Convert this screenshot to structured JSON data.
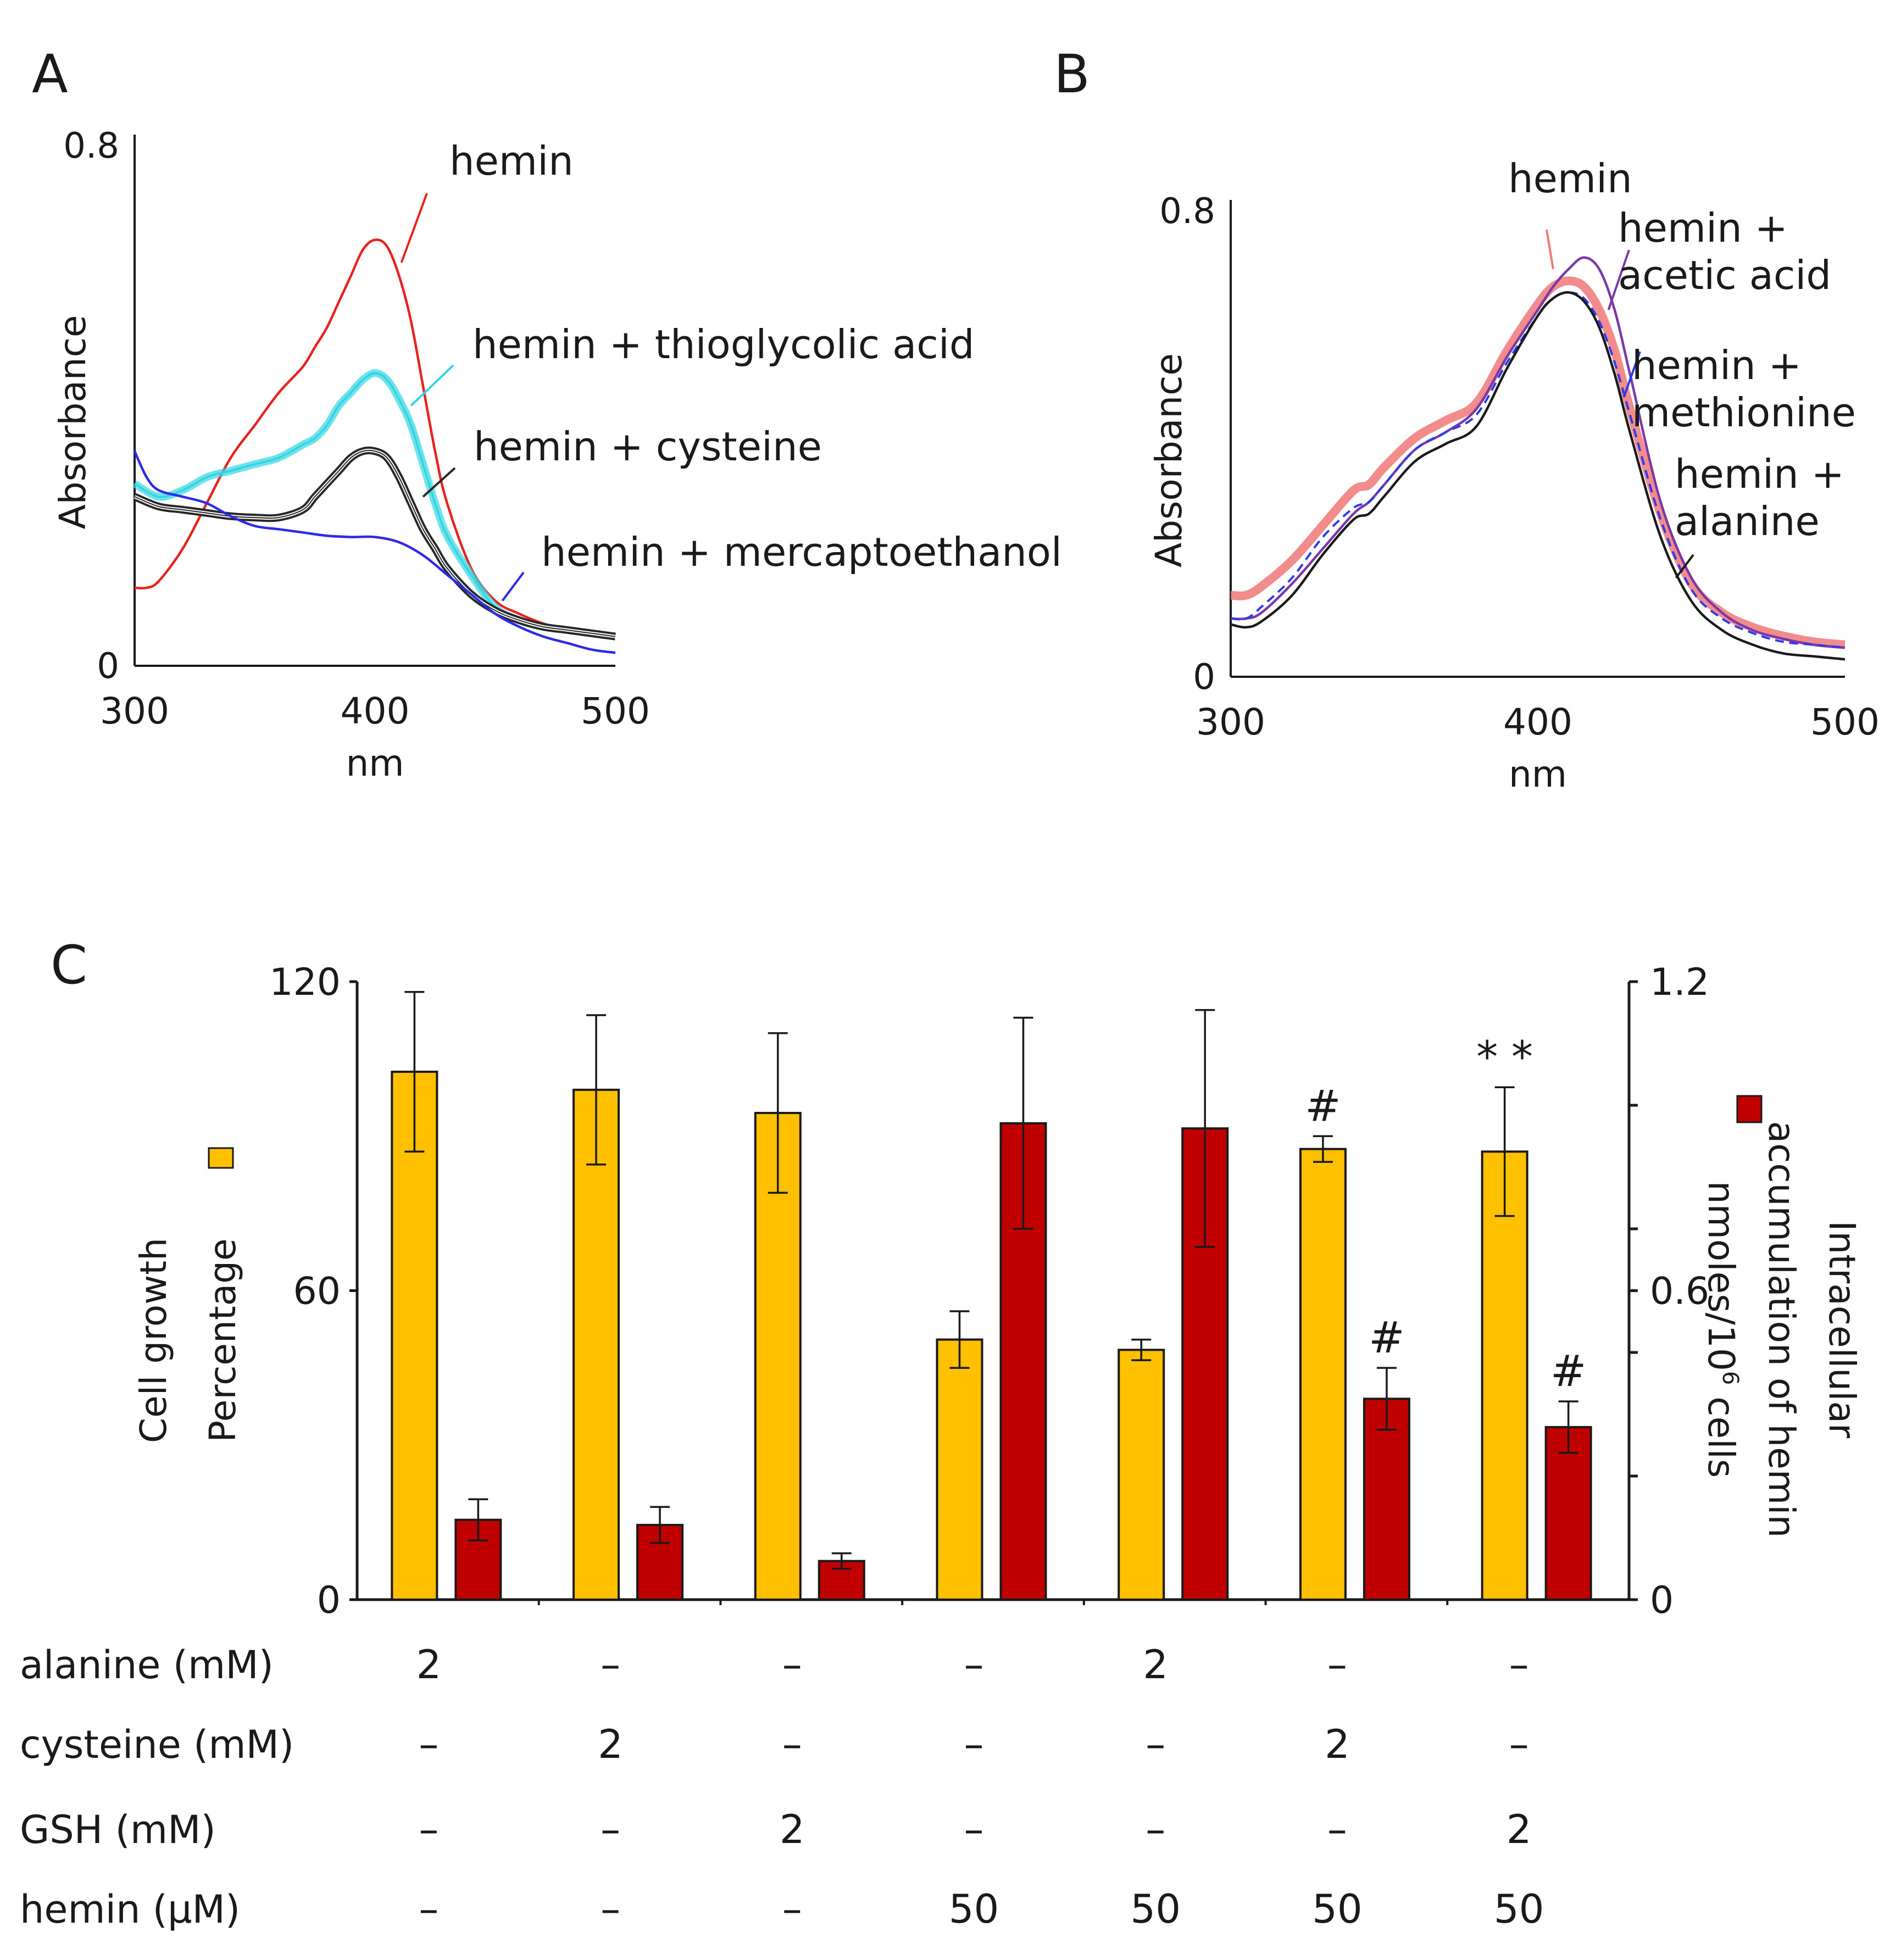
{
  "chart_data": [
    {
      "panel": "A",
      "type": "line",
      "xlabel": "nm",
      "ylabel": "Absorbance",
      "xlim": [
        300,
        500
      ],
      "ylim": [
        0,
        0.8
      ],
      "xticks": [
        "300",
        "400",
        "500"
      ],
      "yticks": [
        "0",
        "0.8"
      ],
      "series": [
        {
          "name": "hemin",
          "color": "#e8231e",
          "style": "solid",
          "x": [
            300,
            305,
            310,
            320,
            330,
            340,
            350,
            360,
            370,
            375,
            380,
            385,
            390,
            395,
            400,
            405,
            410,
            415,
            420,
            425,
            430,
            440,
            450,
            460,
            470,
            480,
            490,
            500
          ],
          "y": [
            0.12,
            0.12,
            0.13,
            0.18,
            0.25,
            0.32,
            0.37,
            0.42,
            0.46,
            0.49,
            0.52,
            0.56,
            0.6,
            0.64,
            0.655,
            0.645,
            0.6,
            0.53,
            0.43,
            0.33,
            0.25,
            0.15,
            0.1,
            0.08,
            0.065,
            0.055,
            0.05,
            0.045
          ]
        },
        {
          "name": "hemin + thioglycolic acid",
          "color": "#33d6e3",
          "style": "solid",
          "x": [
            300,
            310,
            320,
            330,
            340,
            350,
            360,
            370,
            375,
            380,
            385,
            390,
            395,
            400,
            405,
            410,
            415,
            420,
            425,
            430,
            440,
            450,
            460,
            470,
            480,
            490,
            500
          ],
          "y": [
            0.28,
            0.26,
            0.27,
            0.29,
            0.3,
            0.31,
            0.32,
            0.34,
            0.35,
            0.37,
            0.4,
            0.42,
            0.44,
            0.45,
            0.44,
            0.41,
            0.37,
            0.31,
            0.25,
            0.2,
            0.14,
            0.09,
            0.07,
            0.06,
            0.055,
            0.05,
            0.045
          ]
        },
        {
          "name": "hemin + cysteine",
          "color": "#262626",
          "style": "solid",
          "x": [
            300,
            310,
            320,
            330,
            340,
            350,
            360,
            370,
            375,
            380,
            385,
            390,
            395,
            400,
            405,
            410,
            415,
            420,
            425,
            430,
            440,
            450,
            460,
            470,
            480,
            490,
            500
          ],
          "y": [
            0.26,
            0.245,
            0.24,
            0.235,
            0.23,
            0.228,
            0.228,
            0.24,
            0.26,
            0.28,
            0.3,
            0.32,
            0.33,
            0.33,
            0.32,
            0.29,
            0.25,
            0.21,
            0.18,
            0.15,
            0.11,
            0.085,
            0.07,
            0.06,
            0.055,
            0.05,
            0.045
          ]
        },
        {
          "name": "hemin + mercaptoethanol",
          "color": "#2b2be8",
          "style": "solid",
          "x": [
            300,
            305,
            310,
            320,
            330,
            340,
            350,
            360,
            370,
            380,
            390,
            400,
            410,
            420,
            430,
            440,
            450,
            460,
            470,
            480,
            490,
            500
          ],
          "y": [
            0.33,
            0.29,
            0.27,
            0.26,
            0.25,
            0.23,
            0.215,
            0.21,
            0.205,
            0.2,
            0.198,
            0.198,
            0.19,
            0.17,
            0.14,
            0.11,
            0.08,
            0.06,
            0.045,
            0.035,
            0.025,
            0.02
          ]
        }
      ]
    },
    {
      "panel": "B",
      "type": "line",
      "xlabel": "nm",
      "ylabel": "Absorbance",
      "xlim": [
        300,
        500
      ],
      "ylim": [
        0,
        0.8
      ],
      "xticks": [
        "300",
        "400",
        "500"
      ],
      "yticks": [
        "0",
        "0.8"
      ],
      "series": [
        {
          "name": "hemin",
          "color": "#f07878",
          "style": "thick",
          "x": [
            300,
            305,
            310,
            320,
            330,
            340,
            345,
            350,
            360,
            370,
            380,
            390,
            400,
            405,
            410,
            415,
            420,
            425,
            430,
            440,
            450,
            460,
            470,
            480,
            490,
            500
          ],
          "y": [
            0.14,
            0.14,
            0.155,
            0.2,
            0.26,
            0.32,
            0.33,
            0.36,
            0.41,
            0.44,
            0.47,
            0.56,
            0.64,
            0.67,
            0.68,
            0.67,
            0.63,
            0.56,
            0.46,
            0.28,
            0.16,
            0.11,
            0.085,
            0.07,
            0.06,
            0.055
          ]
        },
        {
          "name": "hemin + acetic acid",
          "color": "#7a38a8",
          "style": "solid",
          "x": [
            300,
            305,
            310,
            320,
            330,
            340,
            345,
            350,
            360,
            370,
            380,
            390,
            400,
            405,
            410,
            415,
            420,
            425,
            430,
            440,
            450,
            460,
            470,
            480,
            490,
            500
          ],
          "y": [
            0.1,
            0.1,
            0.11,
            0.16,
            0.22,
            0.28,
            0.3,
            0.33,
            0.39,
            0.42,
            0.46,
            0.55,
            0.63,
            0.67,
            0.7,
            0.72,
            0.7,
            0.63,
            0.52,
            0.3,
            0.17,
            0.11,
            0.08,
            0.065,
            0.055,
            0.05
          ]
        },
        {
          "name": "hemin + methionine",
          "color": "#2c3bea",
          "style": "dashed",
          "x": [
            300,
            305,
            310,
            320,
            330,
            340,
            345,
            350,
            360,
            370,
            380,
            390,
            400,
            405,
            410,
            415,
            420,
            425,
            430,
            440,
            450,
            460,
            470,
            480,
            490,
            500
          ],
          "y": [
            0.1,
            0.1,
            0.12,
            0.17,
            0.24,
            0.29,
            0.3,
            0.33,
            0.39,
            0.42,
            0.45,
            0.54,
            0.62,
            0.65,
            0.66,
            0.65,
            0.61,
            0.54,
            0.45,
            0.27,
            0.15,
            0.1,
            0.075,
            0.06,
            0.055,
            0.05
          ]
        },
        {
          "name": "hemin + alanine",
          "color": "#1a1a1a",
          "style": "solid",
          "x": [
            300,
            305,
            310,
            320,
            330,
            340,
            345,
            350,
            360,
            370,
            380,
            390,
            400,
            405,
            410,
            415,
            420,
            425,
            430,
            440,
            450,
            460,
            470,
            480,
            490,
            500
          ],
          "y": [
            0.09,
            0.085,
            0.095,
            0.14,
            0.21,
            0.27,
            0.28,
            0.31,
            0.37,
            0.4,
            0.43,
            0.53,
            0.62,
            0.65,
            0.66,
            0.645,
            0.6,
            0.52,
            0.42,
            0.24,
            0.13,
            0.08,
            0.055,
            0.04,
            0.035,
            0.03
          ]
        }
      ]
    },
    {
      "panel": "C",
      "type": "bar",
      "ylabel_left": [
        "Cell growth",
        "Percentage"
      ],
      "ylabel_right": [
        "Intracellular",
        "accumulation of hemin",
        "nmoles/10",
        "6",
        " cells"
      ],
      "ylim_left": [
        0,
        120
      ],
      "ylim_right": [
        0,
        1.2
      ],
      "yticks_left": [
        "0",
        "60",
        "120"
      ],
      "yticks_right": [
        "0",
        "0.6",
        "1.2"
      ],
      "series": [
        {
          "name": "Cell growth Percentage",
          "axis": "left",
          "color": "#ffc000",
          "values": [
            102.5,
            99,
            94.5,
            50.5,
            48.5,
            87.5,
            87
          ],
          "errors": [
            15.5,
            14.5,
            15.5,
            5.5,
            2,
            2.5,
            12.5
          ],
          "annotations": [
            "",
            "",
            "",
            "",
            "",
            "#",
            "**"
          ]
        },
        {
          "name": "Intracellular accumulation of hemin",
          "axis": "right",
          "color": "#c00000",
          "values": [
            0.155,
            0.145,
            0.075,
            0.925,
            0.915,
            0.39,
            0.335
          ],
          "errors": [
            0.04,
            0.035,
            0.015,
            0.205,
            0.23,
            0.06,
            0.05
          ],
          "annotations": [
            "",
            "",
            "",
            "",
            "",
            "#",
            "#"
          ]
        }
      ],
      "conditions": [
        {
          "label": "alanine (mM)",
          "values": [
            "2",
            "–",
            "–",
            "–",
            "2",
            "–",
            "–"
          ]
        },
        {
          "label": "cysteine (mM)",
          "values": [
            "–",
            "2",
            "–",
            "–",
            "–",
            "2",
            "–"
          ]
        },
        {
          "label": "GSH (mM)",
          "values": [
            "–",
            "–",
            "2",
            "–",
            "–",
            "–",
            "2"
          ]
        },
        {
          "label": "hemin (µM)",
          "values": [
            "–",
            "–",
            "–",
            "50",
            "50",
            "50",
            "50"
          ]
        }
      ]
    }
  ]
}
